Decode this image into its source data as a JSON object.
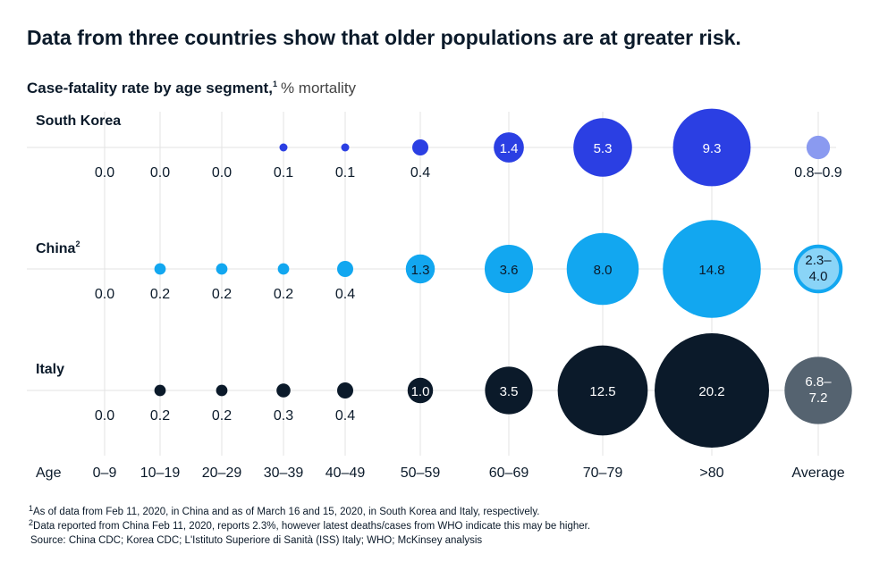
{
  "chart_data": {
    "type": "bubble",
    "title": "Data from three countries show that older populations are at greater risk.",
    "subtitle": "Case-fatality rate by age segment,",
    "subtitle_marker": "1",
    "unit": "% mortality",
    "x_label": "Age",
    "categories": [
      "0–9",
      "10–19",
      "20–29",
      "30–39",
      "40–49",
      "50–59",
      "60–69",
      "70–79",
      ">80"
    ],
    "average_label": "Average",
    "series": [
      {
        "name": "South Korea",
        "color": "#2b3fe3",
        "average_color": "#8a9af0",
        "label_color": "#ffffff",
        "values": [
          0,
          0,
          0,
          0.1,
          0.1,
          0.4,
          1.4,
          5.3,
          9.3
        ],
        "value_labels": [
          "0.0",
          "0.0",
          "0.0",
          "0.1",
          "0.1",
          "0.4",
          "1.4",
          "5.3",
          "9.3"
        ],
        "average": {
          "low": 0.8,
          "high": 0.9,
          "label": "0.8–0.9"
        }
      },
      {
        "name": "China",
        "name_marker": "2",
        "color": "#12a7f0",
        "average_color": "#8ad4f7",
        "average_ring": true,
        "label_color": "#0b1a2a",
        "values": [
          0,
          0.2,
          0.2,
          0.2,
          0.4,
          1.3,
          3.6,
          8.0,
          14.8
        ],
        "value_labels": [
          "0.0",
          "0.2",
          "0.2",
          "0.2",
          "0.4",
          "1.3",
          "3.6",
          "8.0",
          "14.8"
        ],
        "average": {
          "low": 2.3,
          "high": 4.0,
          "label": "2.3–4.0"
        }
      },
      {
        "name": "Italy",
        "color": "#0b1a2a",
        "average_color": "#556370",
        "label_color": "#ffffff",
        "values": [
          0,
          0.2,
          0.2,
          0.3,
          0.4,
          1.0,
          3.5,
          12.5,
          20.2
        ],
        "value_labels": [
          "0.0",
          "0.2",
          "0.2",
          "0.3",
          "0.4",
          "1.0",
          "3.5",
          "12.5",
          "20.2"
        ],
        "average": {
          "low": 6.8,
          "high": 7.2,
          "label": "6.8–7.2"
        }
      }
    ],
    "footnotes": [
      {
        "marker": "1",
        "text": "As of data from Feb 11, 2020, in China and as of March 16 and 15, 2020, in South Korea and Italy, respectively."
      },
      {
        "marker": "2",
        "text": "Data reported from China Feb 11, 2020, reports 2.3%, however latest deaths/cases from WHO indicate this may be higher."
      }
    ],
    "source": "Source: China CDC; Korea CDC; L'Istituto Superiore di Sanità (ISS) Italy; WHO; McKinsey analysis"
  }
}
